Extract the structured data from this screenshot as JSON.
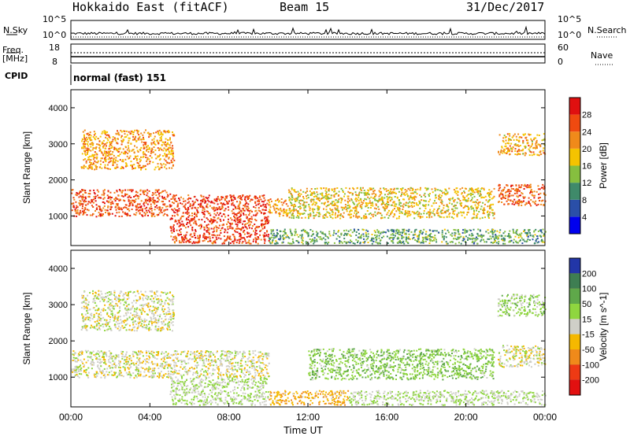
{
  "header": {
    "station": "Hokkaido East (fitACF)",
    "beam": "Beam 15",
    "date": "31/Dec/2017"
  },
  "status_panel": {
    "nsky_label": "N.Sky",
    "nsearch_label": "N.Search",
    "freq_label": "Freq.",
    "freq_unit": "[MHz]",
    "nave_label": "Nave",
    "cpid_label": "CPID",
    "cpid_text": "normal (fast) 151",
    "noise_ticks": [
      "10^5",
      "10^0"
    ],
    "freq_ticks": [
      "18",
      "8"
    ],
    "nave_ticks": [
      "60",
      "0"
    ],
    "noise_ticks_right": [
      "10^5",
      "10^0"
    ]
  },
  "chart_data": [
    {
      "type": "heatmap",
      "title": "",
      "xlabel": "Time UT",
      "ylabel": "Slant Range [km]",
      "colorbar_label": "Power [dB]",
      "xlim": [
        "00:00",
        "24:00"
      ],
      "x_ticks": [
        "00:00",
        "04:00",
        "08:00",
        "12:00",
        "16:00",
        "20:00",
        "00:00"
      ],
      "ylim": [
        180,
        4500
      ],
      "y_ticks": [
        1000,
        2000,
        3000,
        4000
      ],
      "colorbar_ticks": [
        4,
        8,
        12,
        16,
        20,
        24,
        28
      ],
      "colorbar_range": [
        0,
        32
      ],
      "colors": [
        "#0000ee",
        "#2a4fa8",
        "#3f8a6a",
        "#86bf3f",
        "#f5c300",
        "#f08a1a",
        "#f04a10",
        "#e01010"
      ],
      "echo_regions": [
        {
          "t0": 0.0,
          "t1": 5.0,
          "r0": 1000,
          "r1": 1750,
          "value": 26
        },
        {
          "t0": 5.0,
          "t1": 10.0,
          "r0": 250,
          "r1": 1600,
          "value": 27
        },
        {
          "t0": 0.5,
          "t1": 5.2,
          "r0": 2300,
          "r1": 3400,
          "value": 21
        },
        {
          "t0": 21.6,
          "t1": 24.0,
          "r0": 1300,
          "r1": 1900,
          "value": 25
        },
        {
          "t0": 21.6,
          "t1": 24.0,
          "r0": 2700,
          "r1": 3300,
          "value": 20
        },
        {
          "t0": 11.0,
          "t1": 21.4,
          "r0": 950,
          "r1": 1800,
          "value": 18
        },
        {
          "t0": 10.0,
          "t1": 11.0,
          "r0": 1000,
          "r1": 1500,
          "value": 22
        },
        {
          "t0": 10.0,
          "t1": 24.0,
          "r0": 250,
          "r1": 650,
          "value": 12
        }
      ]
    },
    {
      "type": "heatmap",
      "title": "",
      "xlabel": "Time UT",
      "ylabel": "Slant Range [km]",
      "colorbar_label": "Velocity [m s^-1]",
      "xlim": [
        "00:00",
        "24:00"
      ],
      "x_ticks": [
        "00:00",
        "04:00",
        "08:00",
        "12:00",
        "16:00",
        "20:00",
        "00:00"
      ],
      "ylim": [
        180,
        4500
      ],
      "y_ticks": [
        1000,
        2000,
        3000,
        4000
      ],
      "colorbar_ticks": [
        "200",
        "100",
        "50",
        "15",
        "-15",
        "-50",
        "-100",
        "-200"
      ],
      "colors": [
        "#2236a8",
        "#3e7e52",
        "#5fa84a",
        "#8fd63f",
        "#cfcfc8",
        "#f5b800",
        "#f08a1a",
        "#ee3a14",
        "#e21010"
      ],
      "echo_regions": [
        {
          "t0": 0.0,
          "t1": 10.0,
          "r0": 1000,
          "r1": 1750,
          "value": 0
        },
        {
          "t0": 5.0,
          "t1": 10.0,
          "r0": 250,
          "r1": 1000,
          "value": 20
        },
        {
          "t0": 0.5,
          "t1": 5.2,
          "r0": 2300,
          "r1": 3400,
          "value": 0
        },
        {
          "t0": 21.6,
          "t1": 24.0,
          "r0": 1300,
          "r1": 1900,
          "value": 0
        },
        {
          "t0": 21.6,
          "t1": 24.0,
          "r0": 2700,
          "r1": 3300,
          "value": 30
        },
        {
          "t0": 12.0,
          "t1": 21.4,
          "r0": 950,
          "r1": 1800,
          "value": 40
        },
        {
          "t0": 10.0,
          "t1": 14.0,
          "r0": 250,
          "r1": 650,
          "value": -40
        },
        {
          "t0": 14.0,
          "t1": 24.0,
          "r0": 250,
          "r1": 650,
          "value": 15
        }
      ]
    }
  ]
}
